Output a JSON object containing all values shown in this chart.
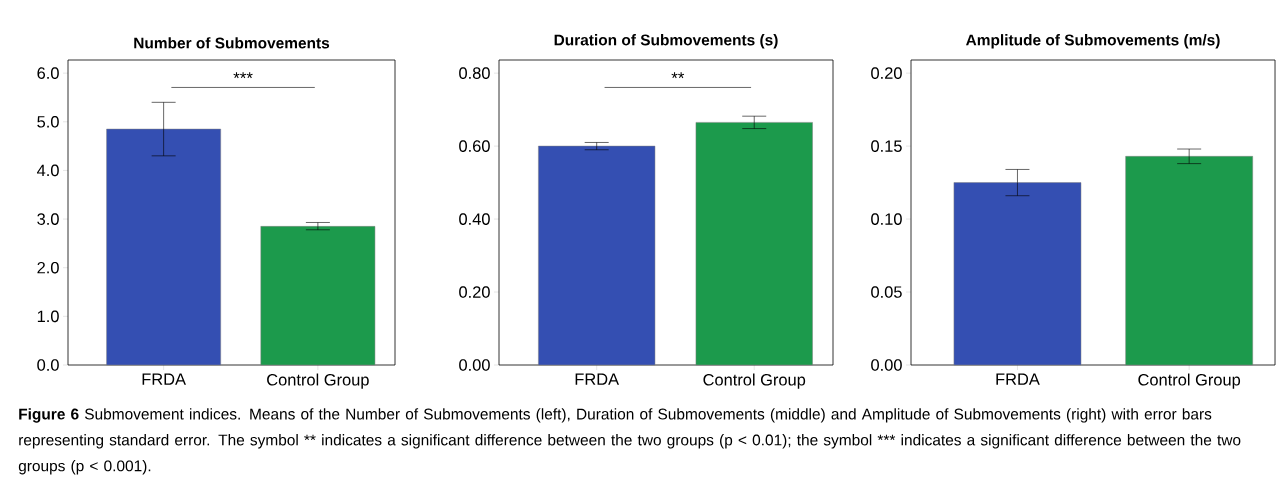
{
  "chart_data": [
    {
      "type": "bar",
      "title": "Number of Submovements",
      "categories": [
        "FRDA",
        "Control Group"
      ],
      "values": [
        4.85,
        2.85
      ],
      "colors": [
        "#344fb2",
        "#1c9a4c"
      ],
      "errors": [
        [
          4.3,
          5.4
        ],
        [
          2.78,
          2.93
        ]
      ],
      "ylim": [
        0,
        6.27
      ],
      "yticks": [
        {
          "value": 0,
          "label": "0.0"
        },
        {
          "value": 1,
          "label": "1.0"
        },
        {
          "value": 2,
          "label": "2.0"
        },
        {
          "value": 3,
          "label": "3.0"
        },
        {
          "value": 4,
          "label": "4.0"
        },
        {
          "value": 5,
          "label": "5.0"
        },
        {
          "value": 6,
          "label": "6.0"
        }
      ],
      "annotations": [
        "***",
        "**Figure 6** Submovement indices. Means of the Number of Submovements (left), Duration of Submovements (middle) and Amplitude of Submovements (right) with error bars representing standard error. The symbol ** indicates a significant difference between the two groups (p < 0.01); the symbol *** indicates a significant difference between the two groups (p < 0.001)."
      ]
    },
    {
      "type": "bar",
      "title": "Duration of Submovements (s)",
      "categories": [
        "FRDA",
        "Control Group"
      ],
      "values": [
        0.6,
        0.665
      ],
      "colors": [
        "#344fb2",
        "#1c9a4c"
      ],
      "errors": [
        [
          0.59,
          0.61
        ],
        [
          0.648,
          0.682
        ]
      ],
      "ylim": [
        0,
        0.836
      ],
      "yticks": [
        {
          "value": 0,
          "label": "0.00"
        },
        {
          "value": 0.2,
          "label": "0.20"
        },
        {
          "value": 0.4,
          "label": "0.40"
        },
        {
          "value": 0.6,
          "label": "0.60"
        },
        {
          "value": 0.8,
          "label": "0.80"
        }
      ],
      "annotations": [
        "**"
      ]
    },
    {
      "type": "bar",
      "title": "Amplitude of Submovements (m/s)",
      "categories": [
        "FRDA",
        "Control Group"
      ],
      "values": [
        0.125,
        0.143
      ],
      "colors": [
        "#344fb2",
        "#1c9a4c"
      ],
      "errors": [
        [
          0.116,
          0.134
        ],
        [
          0.138,
          0.148
        ]
      ],
      "ylim": [
        0,
        0.209
      ],
      "yticks": [
        {
          "value": 0,
          "label": "0.00"
        },
        {
          "value": 0.05,
          "label": "0.05"
        },
        {
          "value": 0.1,
          "label": "0.10"
        },
        {
          "value": 0.15,
          "label": "0.15"
        },
        {
          "value": 0.2,
          "label": "0.20"
        }
      ]
    }
  ]
}
